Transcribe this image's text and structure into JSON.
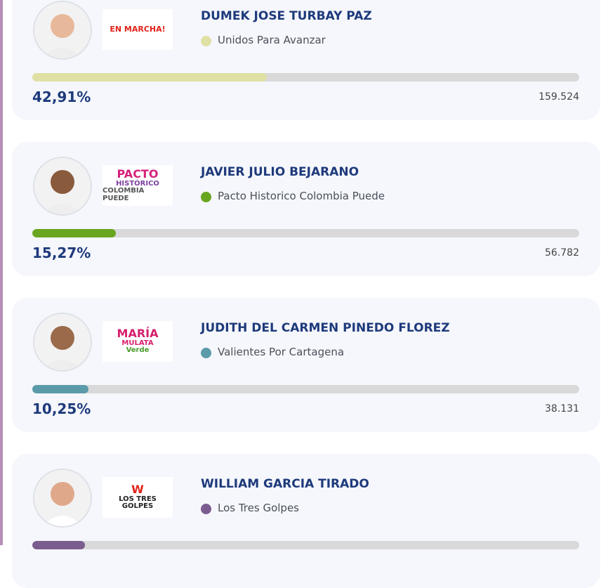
{
  "candidates": [
    {
      "name": "DUMEK JOSE TURBAY PAZ",
      "party": "Unidos Para Avanzar",
      "color": "#dfe0a4",
      "percent": 42.91,
      "percent_label": "42,91%",
      "votes": "159.524",
      "logo": [
        "EN MARCHA!"
      ]
    },
    {
      "name": "JAVIER JULIO BEJARANO",
      "party": "Pacto Historico Colombia Puede",
      "color": "#6aa51f",
      "percent": 15.27,
      "percent_label": "15,27%",
      "votes": "56.782",
      "logo": [
        "PACTO",
        "HISTÓRICO",
        "COLOMBIA PUEDE"
      ]
    },
    {
      "name": "JUDITH DEL CARMEN PINEDO FLOREZ",
      "party": "Valientes Por Cartagena",
      "color": "#5b9ba9",
      "percent": 10.25,
      "percent_label": "10,25%",
      "votes": "38.131",
      "logo": [
        "MARÍA",
        "MULATA",
        "Verde"
      ]
    },
    {
      "name": "WILLIAM GARCIA TIRADO",
      "party": "Los Tres Golpes",
      "color": "#7b5c8e",
      "percent": 9.6,
      "logo": [
        "W",
        "LOS TRES",
        "GOLPES"
      ]
    }
  ]
}
